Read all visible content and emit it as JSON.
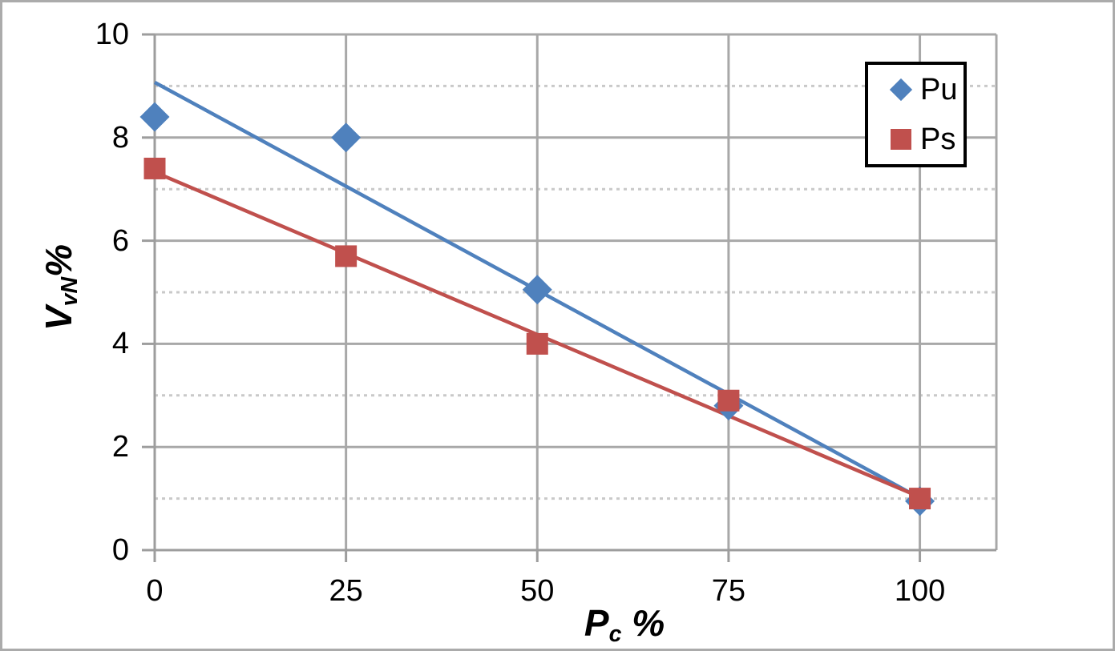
{
  "chart_data": {
    "type": "scatter",
    "title": "",
    "x_axis": {
      "label_main": "P",
      "label_sub": "c",
      "label_suffix": "%",
      "ticks": [
        0,
        25,
        50,
        75,
        100
      ],
      "range": [
        0,
        110
      ]
    },
    "y_axis": {
      "label_main": "V",
      "label_sub": "vN",
      "label_suffix": "%",
      "ticks_major": [
        0,
        2,
        4,
        6,
        8,
        10
      ],
      "ticks_minor": [
        1,
        3,
        5,
        7,
        9
      ],
      "range": [
        0,
        10
      ]
    },
    "grid": {
      "major": "solid",
      "minor_horizontal": "dotted"
    },
    "legend_position": "top-right",
    "series": [
      {
        "name": "Pu",
        "marker": "diamond",
        "color": "#4F81BD",
        "x": [
          0,
          25,
          50,
          75,
          100
        ],
        "y": [
          8.4,
          8.0,
          5.05,
          2.8,
          0.95
        ],
        "trendline": {
          "intercept": 9.07,
          "slope": -0.0806
        }
      },
      {
        "name": "Ps",
        "marker": "square",
        "color": "#C0504D",
        "x": [
          0,
          25,
          50,
          75,
          100
        ],
        "y": [
          7.4,
          5.7,
          4.0,
          2.9,
          1.0
        ],
        "trendline": {
          "intercept": 7.33,
          "slope": -0.063
        }
      }
    ]
  },
  "colors": {
    "axis_line": "#9d9d9d",
    "grid_major": "#a8a8a8",
    "grid_minor": "#c9c9c9",
    "series_pu": "#4F81BD",
    "series_ps": "#C0504D",
    "legend_border": "#000000",
    "figure_border": "#ababab",
    "text": "#000000"
  }
}
